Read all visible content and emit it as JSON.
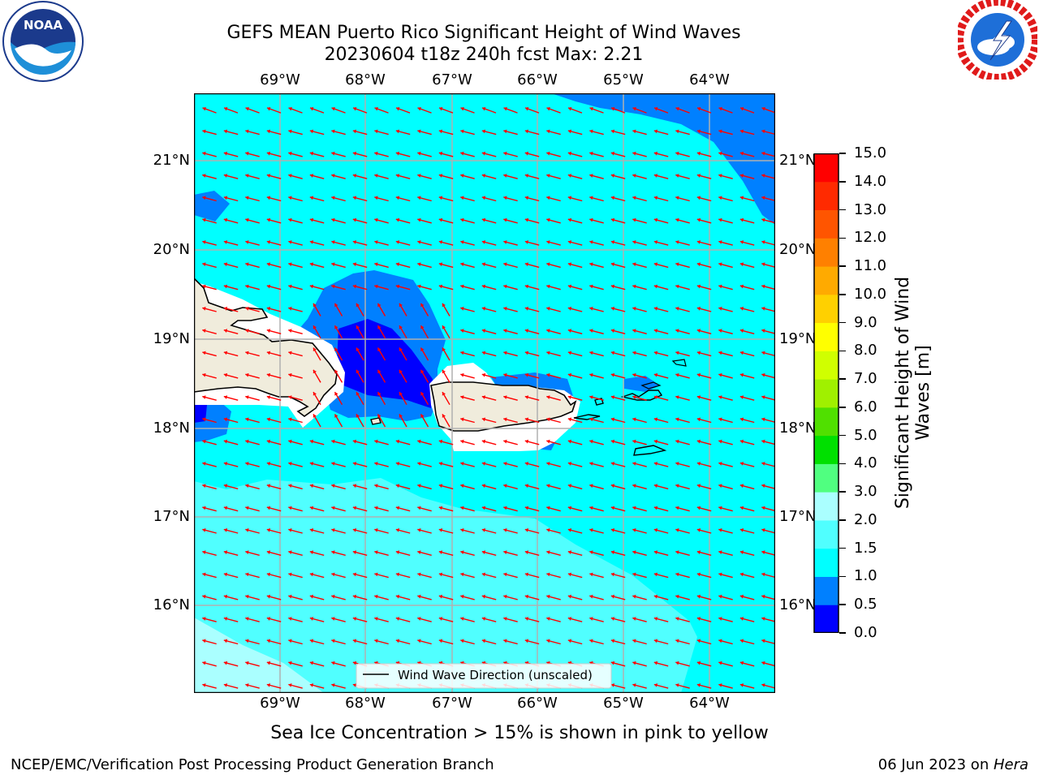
{
  "header": {
    "title_line1": "GEFS MEAN Puerto Rico Significant Height of Wind Waves",
    "title_line2": "20230604 t18z 240h fcst   Max: 2.21"
  },
  "logos": {
    "left": {
      "text": "NOAA",
      "ring_text": "NATIONAL OCEANIC AND ATMOSPHERIC ADMINISTRATION · U.S. DEPARTMENT OF COMMERCE"
    },
    "right": {
      "ring_text": "NATIONAL WEATHER SERVICE"
    }
  },
  "map": {
    "lon_ticks": [
      "69°W",
      "68°W",
      "67°W",
      "66°W",
      "65°W",
      "64°W"
    ],
    "lat_ticks": [
      "21°N",
      "20°N",
      "19°N",
      "18°N",
      "17°N",
      "16°N"
    ],
    "legend_label": "Wind Wave Direction (unscaled)",
    "colors": {
      "land": "#f0ecdc",
      "grid": "#b0b0b0",
      "arrow": "#ff0000",
      "coast": "#000000"
    }
  },
  "colorbar": {
    "label_line1": "Significant Height of Wind",
    "label_line2": "Waves [m]",
    "ticks": [
      "0.0",
      "0.5",
      "1.0",
      "1.5",
      "2.0",
      "3.0",
      "4.0",
      "5.0",
      "6.0",
      "7.0",
      "8.0",
      "9.0",
      "10.0",
      "11.0",
      "12.0",
      "13.0",
      "14.0",
      "15.0"
    ],
    "colors": [
      "#0000ff",
      "#0080ff",
      "#00ffff",
      "#50ffff",
      "#aaffff",
      "#50ff80",
      "#00e000",
      "#50e000",
      "#a0f000",
      "#d0ff00",
      "#ffff00",
      "#ffd000",
      "#ffaa00",
      "#ff8000",
      "#ff5500",
      "#ff2a00",
      "#ff0000"
    ]
  },
  "footer": {
    "note": "Sea Ice Concentration > 15% is shown in pink to yellow",
    "credit": "NCEP/EMC/Verification Post Processing Product Generation Branch",
    "date_prefix": "06 Jun 2023 on ",
    "machine": "Hera"
  }
}
